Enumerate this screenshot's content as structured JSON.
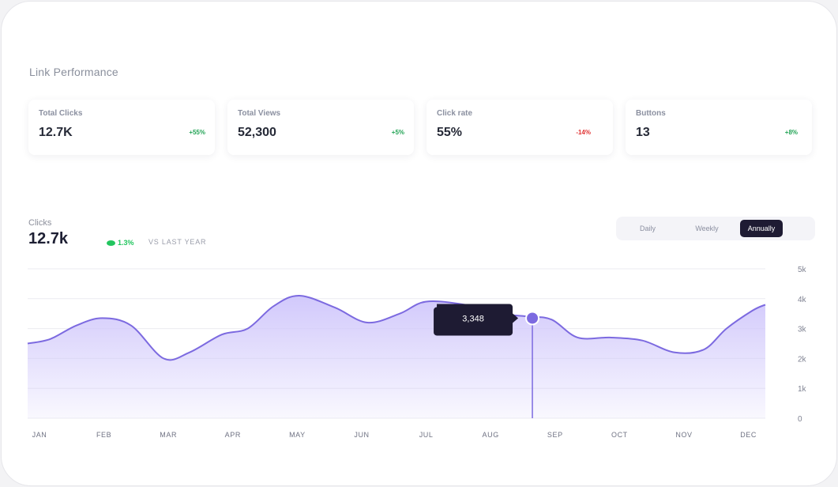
{
  "section": {
    "title": "Link Performance"
  },
  "cards": [
    {
      "label": "Total Clicks",
      "value": "12.7K",
      "change": "+55%",
      "trend": "up"
    },
    {
      "label": "Total Views",
      "value": "52,300",
      "change": "+5%",
      "trend": "up"
    },
    {
      "label": "Click rate",
      "value": "55%",
      "change": "-14%",
      "trend": "down"
    },
    {
      "label": "Buttons",
      "value": "13",
      "change": "+8%",
      "trend": "up"
    }
  ],
  "clicks": {
    "label": "Clicks",
    "value": "12.7k",
    "growth": "1.3%",
    "comparison": "VS LAST YEAR"
  },
  "period_toggle": {
    "options": [
      "Daily",
      "Weekly",
      "Annually"
    ],
    "selected": "Annually"
  },
  "tooltip": {
    "value": "3,348"
  },
  "colors": {
    "accent": "#7c6ae0",
    "area_top": "#cfc6fb",
    "up": "#22a355",
    "down": "#e03131",
    "tooltip_bg": "#1e1b33"
  },
  "chart_data": {
    "type": "area",
    "x": [
      "JAN",
      "FEB",
      "MAR",
      "APR",
      "MAY",
      "JUN",
      "JUL",
      "AUG",
      "SEP",
      "OCT",
      "NOV",
      "DEC"
    ],
    "y_ticks": [
      "0",
      "1k",
      "2k",
      "3k",
      "4k",
      "5k"
    ],
    "ylim": [
      0,
      5000
    ],
    "grid": true,
    "y_axis_position": "right",
    "series": [
      {
        "points": [
          [
            0.0,
            2500
          ],
          [
            0.35,
            2650
          ],
          [
            0.75,
            3100
          ],
          [
            1.15,
            3350
          ],
          [
            1.6,
            3100
          ],
          [
            2.1,
            2000
          ],
          [
            2.5,
            2200
          ],
          [
            3.0,
            2800
          ],
          [
            3.4,
            3000
          ],
          [
            3.8,
            3750
          ],
          [
            4.2,
            4100
          ],
          [
            4.75,
            3700
          ],
          [
            5.25,
            3200
          ],
          [
            5.75,
            3500
          ],
          [
            6.15,
            3900
          ],
          [
            6.75,
            3800
          ],
          [
            7.3,
            3500
          ],
          [
            7.75,
            3400
          ],
          [
            8.1,
            3300
          ],
          [
            8.5,
            2700
          ],
          [
            9.0,
            2700
          ],
          [
            9.5,
            2600
          ],
          [
            10.0,
            2200
          ],
          [
            10.45,
            2300
          ],
          [
            10.8,
            3000
          ],
          [
            11.2,
            3600
          ],
          [
            11.4,
            3800
          ]
        ]
      }
    ],
    "highlight": {
      "x": 7.8,
      "y": 3348,
      "label": "3,348"
    }
  }
}
